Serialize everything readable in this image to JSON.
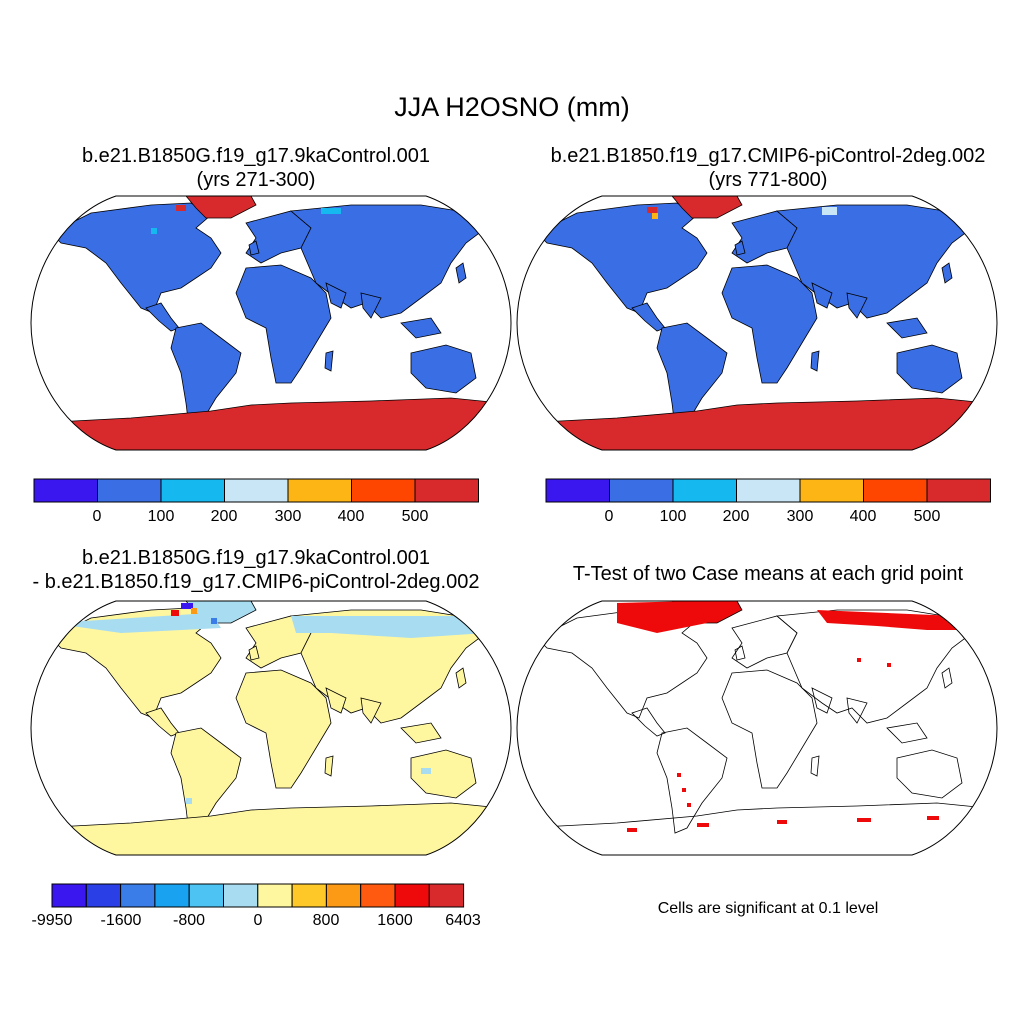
{
  "title": "JJA H2OSNO (mm)",
  "panels": {
    "tl": {
      "title_line1": "b.e21.B1850G.f19_g17.9kaControl.001",
      "title_line2": "(yrs 271-300)"
    },
    "tr": {
      "title_line1": "b.e21.B1850.f19_g17.CMIP6-piControl-2deg.002",
      "title_line2": "(yrs 771-800)"
    },
    "bl": {
      "title_line1": "b.e21.B1850G.f19_g17.9kaControl.001",
      "title_line2": "- b.e21.B1850.f19_g17.CMIP6-piControl-2deg.002"
    },
    "br": {
      "title_line1": "T-Test of two Case means at each grid point"
    }
  },
  "colorbar_top": {
    "colors": [
      "#3a16ef",
      "#3a6ee4",
      "#16b8f0",
      "#c8e6f5",
      "#fdb515",
      "#ff4600",
      "#d82a2c"
    ],
    "labels": [
      "0",
      "100",
      "200",
      "300",
      "400",
      "500"
    ]
  },
  "colorbar_diff": {
    "colors": [
      "#3a16ef",
      "#2a40e6",
      "#3a7de8",
      "#18a2f0",
      "#4cc3f3",
      "#a8dcf0",
      "#fff7a0",
      "#fec828",
      "#fd9a15",
      "#ff5a10",
      "#ee0a0a",
      "#d82a2c"
    ],
    "labels": [
      "-9950",
      "-1600",
      "-800",
      "0",
      "800",
      "1600",
      "6403"
    ]
  },
  "note": "Cells are significant at 0.1 level",
  "colors": {
    "land": "#3a6ee4",
    "ice": "#d82a2c",
    "diff_land": "#fff7a0",
    "diff_low": "#a8dcf0",
    "sig": "#ee0a0a"
  }
}
